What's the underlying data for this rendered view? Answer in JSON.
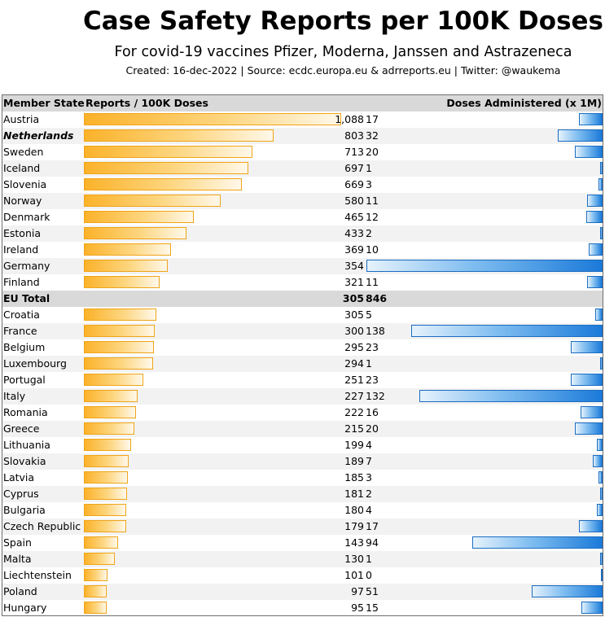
{
  "title": "Case Safety Reports per 100K Doses",
  "subtitle": "For covid-19 vaccines Pfizer, Moderna, Janssen and Astrazeneca",
  "credits": "Created: 16-dec-2022 | Source: ecdc.europa.eu & adrreports.eu | Twitter: @waukema",
  "headers": {
    "country": "Member State",
    "reports": "Reports / 100K Doses",
    "doses": "Doses Administered (x 1M)"
  },
  "colors": {
    "reports_bar": "#fbb22a",
    "doses_bar": "#1b7ad9",
    "header_bg": "#d9d9d9",
    "row_alt_bg": "#f2f2f2"
  },
  "chart_data": {
    "type": "bar",
    "categories": [
      "Austria",
      "Netherlands",
      "Sweden",
      "Iceland",
      "Slovenia",
      "Norway",
      "Denmark",
      "Estonia",
      "Ireland",
      "Germany",
      "Finland",
      "EU Total",
      "Croatia",
      "France",
      "Belgium",
      "Luxembourg",
      "Portugal",
      "Italy",
      "Romania",
      "Greece",
      "Lithuania",
      "Slovakia",
      "Latvia",
      "Cyprus",
      "Bulgaria",
      "Czech Republic",
      "Spain",
      "Malta",
      "Liechtenstein",
      "Poland",
      "Hungary"
    ],
    "series": [
      {
        "name": "Reports / 100K Doses",
        "values": [
          1088,
          803,
          713,
          697,
          669,
          580,
          465,
          433,
          369,
          354,
          321,
          305,
          305,
          300,
          295,
          294,
          251,
          227,
          222,
          215,
          199,
          189,
          185,
          181,
          180,
          179,
          143,
          130,
          101,
          97,
          95
        ]
      },
      {
        "name": "Doses Administered (x 1M)",
        "values": [
          17,
          32,
          20,
          1,
          3,
          11,
          12,
          2,
          10,
          170,
          11,
          846,
          5,
          138,
          23,
          1,
          23,
          132,
          16,
          20,
          4,
          7,
          3,
          2,
          4,
          17,
          94,
          1,
          0,
          51,
          15
        ]
      }
    ],
    "value_labels": [
      "1,088",
      "803",
      "713",
      "697",
      "669",
      "580",
      "465",
      "433",
      "369",
      "354",
      "321",
      "305",
      "305",
      "300",
      "295",
      "294",
      "251",
      "227",
      "222",
      "215",
      "199",
      "189",
      "185",
      "181",
      "180",
      "179",
      "143",
      "130",
      "101",
      "97",
      "95"
    ],
    "highlight": {
      "bold_italic": "Netherlands",
      "total_row": "EU Total"
    },
    "reports_max": 1088,
    "doses_max": 170
  }
}
